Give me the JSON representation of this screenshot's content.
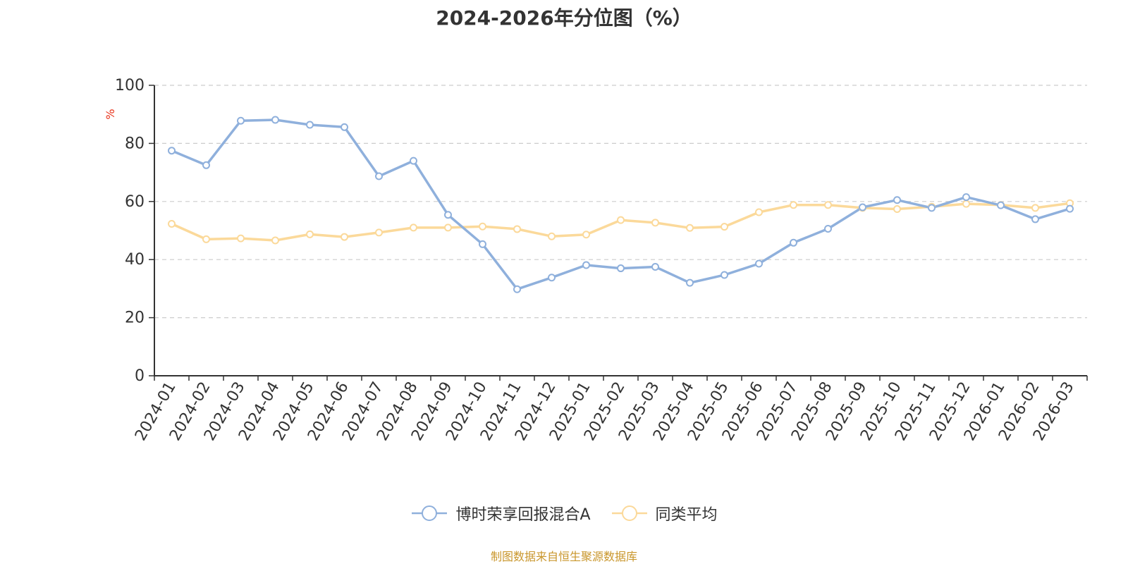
{
  "colors": {
    "series_a": "#8fb0dc",
    "series_b": "#fbd99a",
    "grid": "#cccccc",
    "axis": "#333333",
    "unit_label": "#e8341c",
    "source": "#c9962b"
  },
  "chart_data": {
    "type": "line",
    "title": "2024-2026年分位图（%）",
    "ylabel": "%",
    "ylim": [
      0,
      100
    ],
    "yticks": [
      0,
      20,
      40,
      60,
      80,
      100
    ],
    "grid": true,
    "legend_position": "bottom",
    "categories": [
      "2024-01",
      "2024-02",
      "2024-03",
      "2024-04",
      "2024-05",
      "2024-06",
      "2024-07",
      "2024-08",
      "2024-09",
      "2024-10",
      "2024-11",
      "2024-12",
      "2025-01",
      "2025-02",
      "2025-03",
      "2025-04",
      "2025-05",
      "2025-06",
      "2025-07",
      "2025-08",
      "2025-09",
      "2025-10",
      "2025-11",
      "2025-12",
      "2026-01",
      "2026-02",
      "2026-03"
    ],
    "series": [
      {
        "name": "博时荣享回报混合A",
        "color": "#8fb0dc",
        "values": [
          77.5,
          72.5,
          87.8,
          88.1,
          86.4,
          85.6,
          68.7,
          74.0,
          55.4,
          45.3,
          29.8,
          33.8,
          38.1,
          37.0,
          37.5,
          32.0,
          34.7,
          38.6,
          45.8,
          50.6,
          58.0,
          60.5,
          57.8,
          61.5,
          58.7,
          53.9,
          57.5
        ]
      },
      {
        "name": "同类平均",
        "color": "#fbd99a",
        "values": [
          52.3,
          47.0,
          47.3,
          46.6,
          48.7,
          47.8,
          49.3,
          51.0,
          51.0,
          51.4,
          50.5,
          48.0,
          48.6,
          53.6,
          52.7,
          50.9,
          51.3,
          56.3,
          58.8,
          58.8,
          57.8,
          57.4,
          58.2,
          59.2,
          58.8,
          57.8,
          59.4
        ]
      }
    ]
  },
  "source_note": "制图数据来自恒生聚源数据库"
}
